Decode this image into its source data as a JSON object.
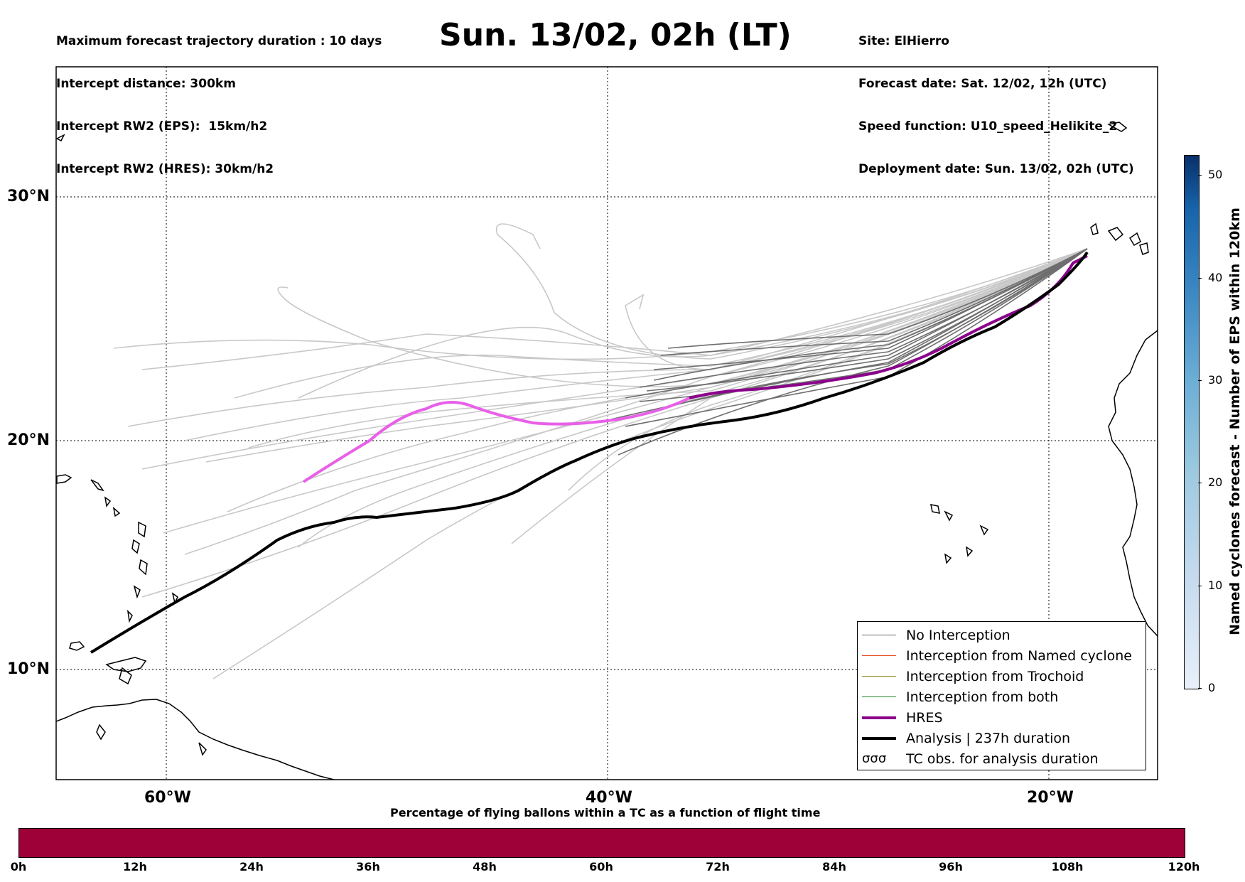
{
  "header_left": [
    "Maximum forecast trajectory duration : 10 days",
    "Intercept distance: 300km",
    "Intercept RW2 (EPS):  15km/h2",
    "Intercept RW2 (HRES): 30km/h2"
  ],
  "header_right": [
    "Site: ElHierro",
    "Forecast date: Sat. 12/02, 12h (UTC)",
    "Speed function: U10_speed_Helikite_2",
    "Deployment date: Sun. 13/02, 02h (UTC)"
  ],
  "title": "Sun. 13/02, 02h (LT)",
  "map": {
    "lon_labels": [
      "60°W",
      "40°W",
      "20°W"
    ],
    "lat_labels": [
      "30°N",
      "20°N",
      "10°N"
    ],
    "lon_range": [
      -65,
      -15
    ],
    "lat_range": [
      5.5,
      34.8
    ]
  },
  "legend": {
    "items": [
      {
        "label": "No Interception",
        "color": "#666666",
        "style": "thin"
      },
      {
        "label": "Interception from Named cyclone",
        "color": "#e8481c",
        "style": "thin"
      },
      {
        "label": "Interception from Trochoid",
        "color": "#8a8a20",
        "style": "thin"
      },
      {
        "label": "Interception from both",
        "color": "#1f7f1f",
        "style": "thin"
      },
      {
        "label": "HRES",
        "color": "#8b008b",
        "style": "thick"
      },
      {
        "label": "Analysis | 237h duration",
        "color": "#000000",
        "style": "thick"
      },
      {
        "label": "TC obs. for analysis duration",
        "symbol": "σσσ"
      }
    ]
  },
  "colorbar": {
    "label": "Named cyclones forecast - Number of EPS within 120km",
    "ticks": [
      "0",
      "10",
      "20",
      "30",
      "40",
      "50"
    ],
    "range": [
      0,
      52
    ]
  },
  "bottom_bar": {
    "title": "Percentage of flying ballons within a TC as a function of flight time",
    "ticks": [
      "0h",
      "12h",
      "24h",
      "36h",
      "48h",
      "60h",
      "72h",
      "84h",
      "96h",
      "108h",
      "120h"
    ],
    "fill_color": "#9e0038"
  }
}
